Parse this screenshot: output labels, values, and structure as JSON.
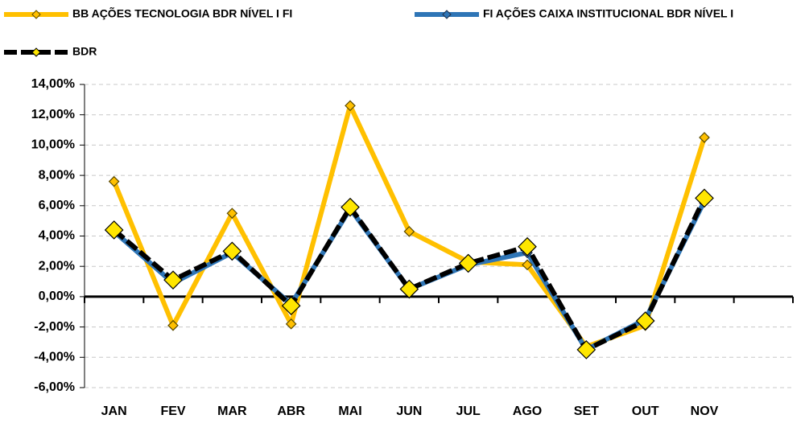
{
  "chart_data": {
    "type": "line",
    "categories": [
      "JAN",
      "FEV",
      "MAR",
      "ABR",
      "MAI",
      "JUN",
      "JUL",
      "AGO",
      "SET",
      "OUT",
      "NOV",
      null
    ],
    "series": [
      {
        "name": "BB AÇÕES TECNOLOGIA BDR NÍVEL I FI",
        "color": "#FFC000",
        "values": [
          7.6,
          -1.9,
          5.5,
          -1.8,
          12.6,
          4.3,
          2.3,
          2.1,
          -3.3,
          -1.9,
          10.5,
          null
        ]
      },
      {
        "name": "FI AÇÕES CAIXA INSTITUCIONAL BDR NÍVEL I",
        "color": "#2E75B6",
        "values": [
          4.3,
          0.9,
          2.9,
          -0.5,
          5.8,
          0.5,
          2.1,
          2.9,
          -3.5,
          -1.5,
          6.3,
          null
        ]
      },
      {
        "name": "BDR",
        "color": "#000000",
        "values": [
          4.4,
          1.1,
          3.0,
          -0.6,
          5.9,
          0.5,
          2.2,
          3.3,
          -3.5,
          -1.6,
          6.5,
          null
        ]
      }
    ],
    "ylim": [
      -6,
      14
    ],
    "yticks": [
      {
        "value": -6,
        "label": "-6,00%"
      },
      {
        "value": -4,
        "label": "-4,00%"
      },
      {
        "value": -2,
        "label": "-2,00%"
      },
      {
        "value": 0,
        "label": "0,00%"
      },
      {
        "value": 2,
        "label": "2,00%"
      },
      {
        "value": 4,
        "label": "4,00%"
      },
      {
        "value": 6,
        "label": "6,00%"
      },
      {
        "value": 8,
        "label": "8,00%"
      },
      {
        "value": 10,
        "label": "10,00%"
      },
      {
        "value": 12,
        "label": "12,00%"
      },
      {
        "value": 14,
        "label": "14,00%"
      }
    ],
    "grid": true
  }
}
